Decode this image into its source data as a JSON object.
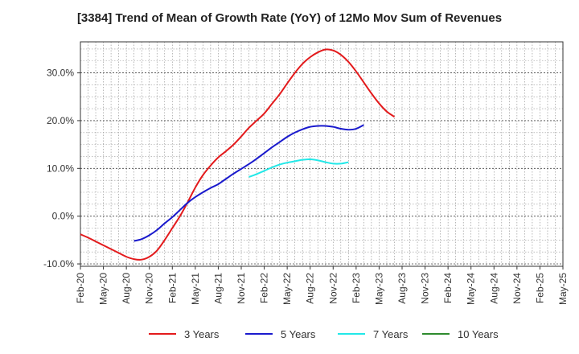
{
  "chart_data": {
    "type": "line",
    "title": "[3384]  Trend of Mean of Growth Rate (YoY) of 12Mo Mov Sum of Revenues",
    "xlabel": "",
    "ylabel": "",
    "ylim": [
      -10.5,
      36.5
    ],
    "yticks": [
      -10.0,
      0.0,
      10.0,
      20.0,
      30.0
    ],
    "ytick_labels": [
      "-10.0%",
      "0.0%",
      "10.0%",
      "20.0%",
      "30.0%"
    ],
    "grid": true,
    "legend_position": "bottom",
    "x_tick_labels": [
      "Feb-20",
      "May-20",
      "Aug-20",
      "Nov-20",
      "Feb-21",
      "May-21",
      "Aug-21",
      "Nov-21",
      "Feb-22",
      "May-22",
      "Aug-22",
      "Nov-22",
      "Feb-23",
      "May-23",
      "Aug-23",
      "Nov-23",
      "Feb-24",
      "May-24",
      "Aug-24",
      "Nov-24",
      "Feb-25",
      "May-25"
    ],
    "series": [
      {
        "name": "3 Years",
        "color": "#e31a1c",
        "start_index": 0,
        "values": [
          -3.8,
          -4.5,
          -5.3,
          -6.1,
          -6.9,
          -7.7,
          -8.5,
          -9.0,
          -9.1,
          -8.5,
          -7.2,
          -5.0,
          -2.5,
          0.0,
          2.9,
          6.0,
          8.6,
          10.6,
          12.3,
          13.6,
          15.0,
          16.7,
          18.5,
          20.0,
          21.5,
          23.5,
          25.5,
          27.8,
          30.0,
          31.9,
          33.3,
          34.3,
          34.9,
          34.7,
          33.8,
          32.3,
          30.3,
          28.0,
          25.7,
          23.6,
          21.9,
          20.8
        ]
      },
      {
        "name": "5 Years",
        "color": "#1a1acd",
        "start_index": 7,
        "values": [
          -5.2,
          -4.8,
          -4.0,
          -2.9,
          -1.5,
          -0.2,
          1.3,
          2.8,
          4.0,
          5.0,
          5.9,
          6.7,
          7.8,
          8.9,
          9.9,
          10.9,
          12.0,
          13.2,
          14.4,
          15.5,
          16.6,
          17.5,
          18.2,
          18.7,
          18.9,
          18.9,
          18.7,
          18.3,
          18.1,
          18.3,
          19.1
        ]
      },
      {
        "name": "7 Years",
        "color": "#22e8e8",
        "start_index": 22,
        "values": [
          8.2,
          8.8,
          9.5,
          10.2,
          10.8,
          11.2,
          11.5,
          11.8,
          11.9,
          11.7,
          11.3,
          11.0,
          11.0,
          11.3
        ]
      },
      {
        "name": "10 Years",
        "color": "#2e8b2e",
        "start_index": 0,
        "values": []
      }
    ]
  }
}
